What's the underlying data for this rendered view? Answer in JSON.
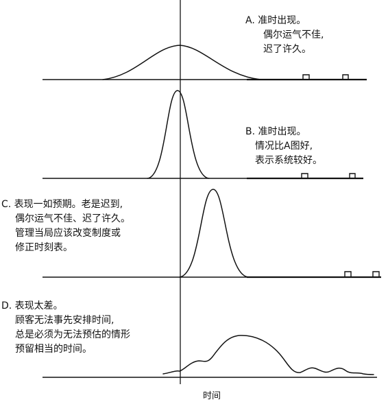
{
  "panels": [
    {
      "id": "A",
      "lines": [
        "A. 准时出现。",
        "偶尔运气不佳,",
        "迟了许久。"
      ]
    },
    {
      "id": "B",
      "lines": [
        "B. 准时出现。",
        "情况比A图好,",
        "表示系统较好。"
      ]
    },
    {
      "id": "C",
      "lines": [
        "C. 表现一如预期。老是迟到,",
        "偶尔运气不佳、迟了许久。",
        "管理当局应该改变制度或",
        "修正时刻表。"
      ]
    },
    {
      "id": "D",
      "lines": [
        "D. 表现太差。",
        "顾客无法事先安排时间,",
        "总是必须为无法预估的情形",
        "预留相当的时间。"
      ]
    }
  ],
  "axis_label": "时间"
}
